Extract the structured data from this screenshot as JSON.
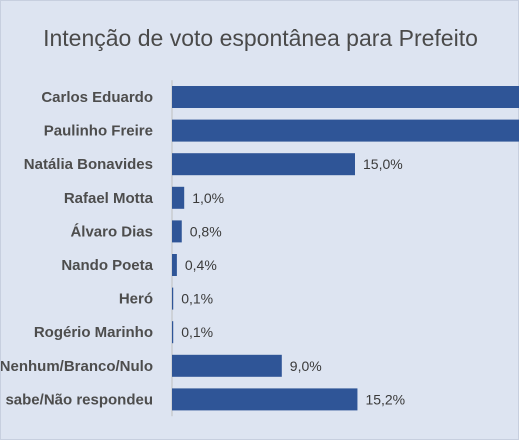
{
  "chart_data": {
    "type": "bar",
    "orientation": "horizontal",
    "title": "Intenção de voto espontânea para Prefeito",
    "categories": [
      "Carlos Eduardo",
      "Paulinho Freire",
      "Natália Bonavides",
      "Rafael Motta",
      "Álvaro Dias",
      "Nando Poeta",
      "Heró",
      "Rogério Marinho",
      "Nenhum/Branco/Nulo",
      "Não sabe/Não respondeu"
    ],
    "values": [
      null,
      null,
      15.0,
      1.0,
      0.8,
      0.4,
      0.1,
      0.1,
      9.0,
      15.2
    ],
    "value_labels": [
      "",
      "",
      "15,0%",
      "1,0%",
      "0,8%",
      "0,4%",
      "0,1%",
      "0,1%",
      "9,0%",
      "15,2%"
    ],
    "xlabel": "",
    "ylabel": "",
    "grid": false,
    "legend": "none",
    "colors": {
      "bar": "#2f5597",
      "panel": "#dde4f1",
      "axis": "#bfbfbf"
    }
  }
}
